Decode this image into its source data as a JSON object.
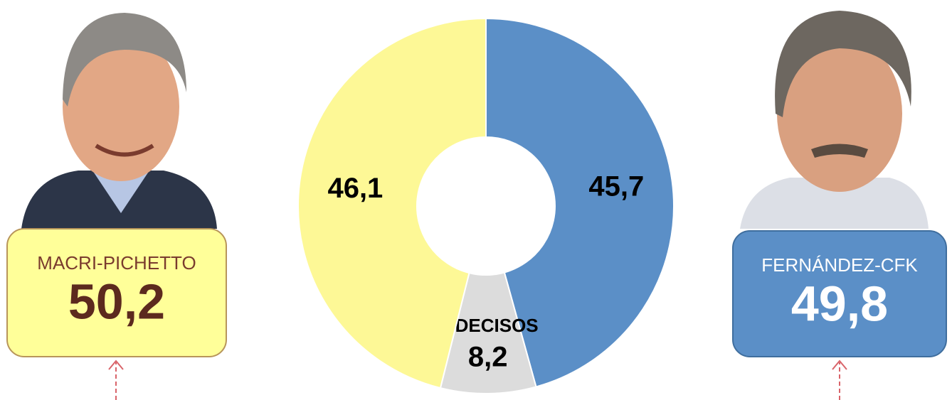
{
  "chart_data": {
    "type": "donut",
    "categories": [
      null,
      "INDECISOS",
      null
    ],
    "values": [
      45.7,
      8.2,
      46.1
    ],
    "value_labels": [
      "45,7",
      "8,2",
      "46,1"
    ],
    "colors": [
      "#5b8fc7",
      "#dcdcdc",
      "#fdf896"
    ]
  },
  "candidates": [
    {
      "name": "MACRI-PICHETTO",
      "value": 50.2,
      "value_label": "50,2",
      "color": "#ffff99"
    },
    {
      "name": "FERNÁNDEZ-CFK",
      "value": 49.8,
      "value_label": "49,8",
      "color": "#5b8fc7"
    }
  ]
}
